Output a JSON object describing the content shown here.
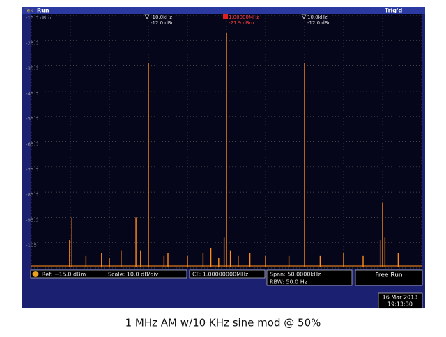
{
  "header": {
    "left_icon": "Tek",
    "status": "Run",
    "trigger": "Trig'd"
  },
  "y_labels": [
    "-15.0 dBm",
    "-25.0",
    "-35.0",
    "-45.0",
    "-55.0",
    "-65.0",
    "-75.0",
    "-85.0",
    "-95.0",
    "-105"
  ],
  "markers": [
    {
      "label": "-10.0kHz",
      "value": "-12.0 dBc"
    },
    {
      "label": "1.00000MHz",
      "value": "-21.9 dBm"
    },
    {
      "label": "10.0kHz",
      "value": "-12.0 dBc"
    }
  ],
  "trace": {
    "xlim": [
      -25,
      25
    ],
    "ylim": [
      -115,
      -15
    ],
    "color": "#ff8c1a",
    "x": [
      -20.1,
      -19.8,
      -18,
      -16,
      -15,
      -13.5,
      -11.6,
      -11,
      -10,
      -8,
      -7.5,
      -5,
      -3,
      -2,
      -1,
      -0.3,
      0,
      0.5,
      1.5,
      3,
      5,
      8,
      10,
      12,
      15,
      17.5,
      19.7,
      20,
      20.3,
      22
    ],
    "levels": [
      -104,
      -95,
      -110,
      -109,
      -111,
      -108,
      -95,
      -108,
      -33.9,
      -110,
      -109,
      -110,
      -109,
      -107,
      -111,
      -103,
      -21.9,
      -108,
      -110,
      -109,
      -110,
      -110,
      -33.9,
      -110,
      -109,
      -110,
      -104,
      -89,
      -103,
      -109
    ]
  },
  "status_bar": {
    "ref": "Ref: −15.0 dBm",
    "scale": "Scale: 10.0 dB/div",
    "cf": "CF: 1.00000000MHz",
    "span": "Span: 50.0000kHz",
    "rbw": "RBW: 50.0 Hz",
    "mode": "Free Run"
  },
  "date": "16 Mar 2013",
  "time": "19:13:30",
  "caption": "1 MHz AM w/10 KHz sine mod @ 50%"
}
